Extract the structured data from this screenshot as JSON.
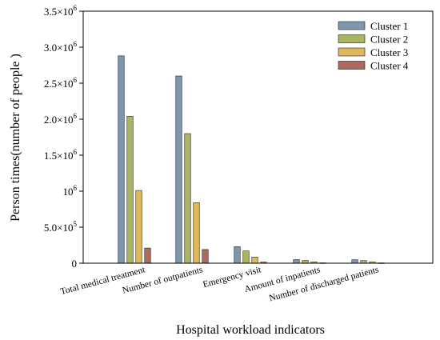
{
  "chart_data": {
    "type": "bar",
    "title": "",
    "xlabel": "Hospital workload indicators",
    "ylabel": "Person times(number of people )",
    "ylim": [
      0,
      3500000
    ],
    "yticks": [
      {
        "value": 0,
        "label": "0"
      },
      {
        "value": 500000,
        "label": "5.0×10^5"
      },
      {
        "value": 1000000,
        "label": "10^6"
      },
      {
        "value": 1500000,
        "label": "1.5×10^6"
      },
      {
        "value": 2000000,
        "label": "2.0×10^6"
      },
      {
        "value": 2500000,
        "label": "2.5×10^6"
      },
      {
        "value": 3000000,
        "label": "3.0×10^6"
      },
      {
        "value": 3500000,
        "label": "3.5×10^6"
      }
    ],
    "categories": [
      "Total medical treatment",
      "Number of outpatients",
      "Emergency visit",
      "Amount of inpatients",
      "Number of discharged patients"
    ],
    "series": [
      {
        "name": "Cluster 1",
        "color": "#8096ad",
        "values": [
          2880000,
          2600000,
          230000,
          50000,
          48000
        ]
      },
      {
        "name": "Cluster 2",
        "color": "#aab561",
        "values": [
          2040000,
          1800000,
          170000,
          38000,
          36000
        ]
      },
      {
        "name": "Cluster 3",
        "color": "#ddb85c",
        "values": [
          1010000,
          840000,
          85000,
          18000,
          17000
        ]
      },
      {
        "name": "Cluster 4",
        "color": "#ad6a5c",
        "values": [
          210000,
          190000,
          15000,
          5000,
          4500
        ]
      }
    ],
    "legend_position": "top-right",
    "grid": false
  }
}
